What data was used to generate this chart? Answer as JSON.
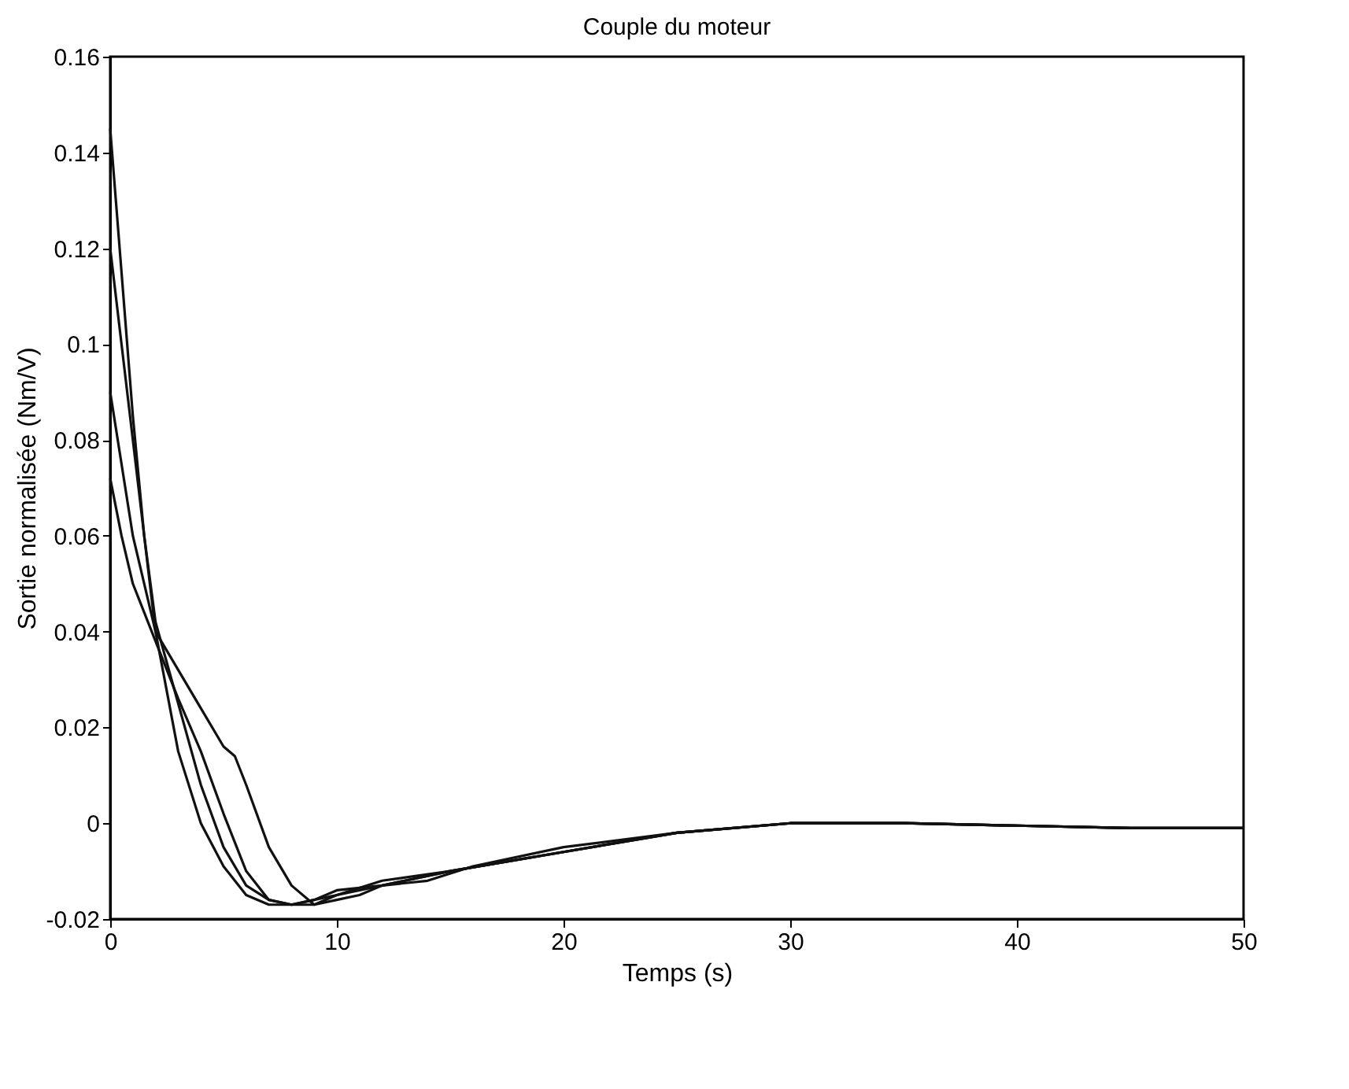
{
  "chart_data": {
    "type": "line",
    "title": "Couple du moteur",
    "xlabel": "Temps (s)",
    "ylabel": "Sortie normalisée (Nm/V)",
    "xlim": [
      0,
      50
    ],
    "xticks": [
      0,
      10,
      20,
      30,
      40,
      50
    ],
    "ylim": [
      -0.02,
      0.16
    ],
    "yticks": [
      -0.02,
      0,
      0.02,
      0.04,
      0.06,
      0.08,
      0.1,
      0.12,
      0.14,
      0.16
    ],
    "grid": false,
    "line_style": "solid",
    "series": [
      {
        "color": "#111111",
        "x": [
          0,
          0.5,
          1,
          1.5,
          2,
          3,
          4,
          5,
          6,
          7,
          8,
          9,
          10,
          12,
          15,
          20,
          25,
          30,
          35,
          40,
          45,
          50
        ],
        "values": [
          0.145,
          0.115,
          0.085,
          0.06,
          0.04,
          0.015,
          0.0,
          -0.009,
          -0.015,
          -0.017,
          -0.017,
          -0.016,
          -0.015,
          -0.013,
          -0.01,
          -0.006,
          -0.002,
          0,
          0,
          -0.0005,
          -0.001,
          -0.001
        ]
      },
      {
        "color": "#111111",
        "x": [
          0,
          0.5,
          1,
          1.5,
          2,
          3,
          4,
          5,
          6,
          7,
          8,
          9,
          10,
          12,
          15,
          20,
          25,
          30,
          35,
          40,
          45,
          50
        ],
        "values": [
          0.12,
          0.1,
          0.08,
          0.06,
          0.042,
          0.025,
          0.008,
          -0.005,
          -0.013,
          -0.016,
          -0.017,
          -0.016,
          -0.014,
          -0.013,
          -0.01,
          -0.006,
          -0.002,
          0,
          0,
          -0.0005,
          -0.001,
          -0.001
        ]
      },
      {
        "color": "#111111",
        "x": [
          0,
          1,
          2,
          3,
          4,
          5,
          5.5,
          6,
          7,
          8,
          9,
          10,
          11,
          12,
          14,
          16,
          20,
          25,
          30,
          35,
          40,
          45,
          50
        ],
        "values": [
          0.09,
          0.06,
          0.04,
          0.032,
          0.024,
          0.016,
          0.014,
          0.008,
          -0.005,
          -0.013,
          -0.017,
          -0.016,
          -0.015,
          -0.013,
          -0.012,
          -0.009,
          -0.005,
          -0.002,
          0,
          0,
          -0.0005,
          -0.001,
          -0.001
        ]
      },
      {
        "color": "#111111",
        "x": [
          0,
          0.5,
          1,
          2,
          3,
          4,
          5,
          6,
          7,
          8,
          9,
          10,
          12,
          15,
          20,
          25,
          30,
          35,
          40,
          45,
          50
        ],
        "values": [
          0.072,
          0.06,
          0.05,
          0.038,
          0.026,
          0.015,
          0.002,
          -0.01,
          -0.016,
          -0.017,
          -0.017,
          -0.015,
          -0.012,
          -0.01,
          -0.006,
          -0.002,
          0,
          0,
          -0.0005,
          -0.001,
          -0.001
        ]
      }
    ]
  }
}
